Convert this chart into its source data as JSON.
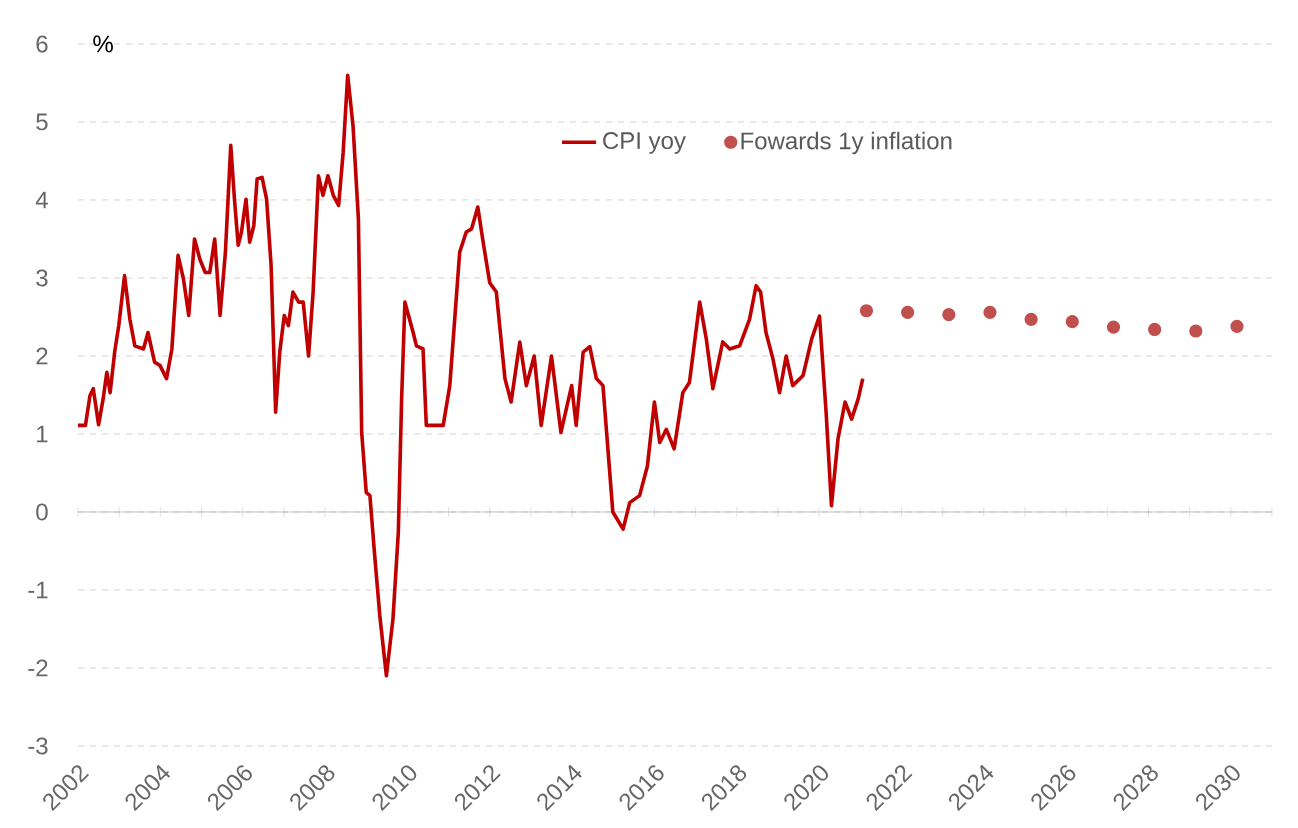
{
  "chart_data": {
    "type": "line",
    "ylabel": "%",
    "xlim": [
      2002,
      2031
    ],
    "ylim": [
      -3,
      6
    ],
    "xticks": [
      2002,
      {
        "value": 2003,
        "label": null
      },
      2004,
      {
        "value": 2005,
        "label": null
      },
      2006,
      {
        "value": 2007,
        "label": null
      },
      2008,
      {
        "value": 2009,
        "label": null
      },
      2010,
      {
        "value": 2011,
        "label": null
      },
      2012,
      {
        "value": 2013,
        "label": null
      },
      2014,
      {
        "value": 2015,
        "label": null
      },
      2016,
      {
        "value": 2017,
        "label": null
      },
      2018,
      {
        "value": 2019,
        "label": null
      },
      2020,
      {
        "value": 2021,
        "label": null
      },
      2022,
      {
        "value": 2023,
        "label": null
      },
      2024,
      {
        "value": 2025,
        "label": null
      },
      2026,
      {
        "value": 2027,
        "label": null
      },
      2028,
      {
        "value": 2029,
        "label": null
      },
      2030,
      {
        "value": 2031,
        "label": null
      }
    ],
    "yticks": [
      -3,
      -2,
      -1,
      0,
      1,
      2,
      3,
      4,
      5,
      6
    ],
    "grid": "y",
    "legend": "top",
    "series": [
      {
        "name": "CPI yoy",
        "color": "#c00000",
        "marker": "none",
        "line_style": "solid",
        "x": [
          2002.0,
          2002.18,
          2002.29,
          2002.37,
          2002.5,
          2002.61,
          2002.7,
          2002.78,
          2002.89,
          2002.99,
          2003.13,
          2003.26,
          2003.38,
          2003.59,
          2003.7,
          2003.86,
          2003.99,
          2004.15,
          2004.28,
          2004.43,
          2004.56,
          2004.69,
          2004.83,
          2004.96,
          2005.09,
          2005.2,
          2005.32,
          2005.45,
          2005.58,
          2005.71,
          2005.8,
          2005.89,
          2005.97,
          2006.08,
          2006.17,
          2006.27,
          2006.35,
          2006.47,
          2006.58,
          2006.69,
          2006.8,
          2006.9,
          2007.01,
          2007.11,
          2007.22,
          2007.36,
          2007.47,
          2007.6,
          2007.71,
          2007.84,
          2007.95,
          2008.07,
          2008.2,
          2008.33,
          2008.44,
          2008.55,
          2008.68,
          2008.81,
          2008.89,
          2009.0,
          2009.09,
          2009.2,
          2009.33,
          2009.49,
          2009.65,
          2009.78,
          2009.86,
          2009.94,
          2010.14,
          2010.22,
          2010.38,
          2010.46,
          2010.87,
          2011.03,
          2011.27,
          2011.43,
          2011.56,
          2011.71,
          2011.84,
          2012.0,
          2012.16,
          2012.37,
          2012.52,
          2012.73,
          2012.89,
          2013.08,
          2013.25,
          2013.5,
          2013.73,
          2013.99,
          2014.1,
          2014.27,
          2014.43,
          2014.59,
          2014.75,
          2014.99,
          2015.24,
          2015.4,
          2015.64,
          2015.83,
          2016.0,
          2016.13,
          2016.29,
          2016.48,
          2016.69,
          2016.85,
          2017.1,
          2017.26,
          2017.42,
          2017.66,
          2017.83,
          2018.07,
          2018.31,
          2018.47,
          2018.58,
          2018.71,
          2018.88,
          2019.04,
          2019.2,
          2019.36,
          2019.61,
          2019.82,
          2020.01,
          2020.17,
          2020.3,
          2020.46,
          2020.63,
          2020.79,
          2020.95,
          2021.06
        ],
        "values": [
          1.11,
          1.11,
          1.49,
          1.58,
          1.12,
          1.45,
          1.79,
          1.53,
          2.05,
          2.39,
          3.03,
          2.47,
          2.13,
          2.09,
          2.3,
          1.92,
          1.88,
          1.71,
          2.09,
          3.29,
          2.99,
          2.52,
          3.5,
          3.24,
          3.07,
          3.07,
          3.5,
          2.52,
          3.33,
          4.7,
          4.01,
          3.42,
          3.59,
          4.01,
          3.46,
          3.67,
          4.27,
          4.29,
          4.01,
          3.16,
          1.28,
          2.05,
          2.52,
          2.39,
          2.82,
          2.69,
          2.69,
          2.0,
          2.82,
          4.31,
          4.06,
          4.31,
          4.06,
          3.93,
          4.61,
          5.6,
          4.95,
          3.76,
          1.02,
          0.25,
          0.21,
          -0.52,
          -1.33,
          -2.1,
          -1.37,
          -0.26,
          1.45,
          2.69,
          2.3,
          2.13,
          2.09,
          1.11,
          1.11,
          1.62,
          3.33,
          3.59,
          3.63,
          3.91,
          3.46,
          2.94,
          2.82,
          1.71,
          1.41,
          2.18,
          1.62,
          2.0,
          1.11,
          2.0,
          1.02,
          1.62,
          1.11,
          2.05,
          2.12,
          1.71,
          1.62,
          0.0,
          -0.22,
          0.12,
          0.21,
          0.59,
          1.41,
          0.89,
          1.06,
          0.81,
          1.53,
          1.66,
          2.69,
          2.22,
          1.58,
          2.18,
          2.09,
          2.13,
          2.47,
          2.9,
          2.82,
          2.3,
          1.96,
          1.53,
          2.0,
          1.62,
          1.75,
          2.22,
          2.51,
          1.28,
          0.08,
          0.94,
          1.41,
          1.19,
          1.45,
          1.71
        ]
      },
      {
        "name": "Fowards 1y inflation",
        "type": "scatter",
        "color": "#c0504d",
        "marker": "circle",
        "x": [
          2021.15,
          2022.15,
          2023.15,
          2024.15,
          2025.15,
          2026.15,
          2027.15,
          2028.15,
          2029.15,
          2030.15
        ],
        "values": [
          2.58,
          2.56,
          2.53,
          2.56,
          2.47,
          2.44,
          2.37,
          2.34,
          2.32,
          2.38
        ]
      }
    ]
  }
}
